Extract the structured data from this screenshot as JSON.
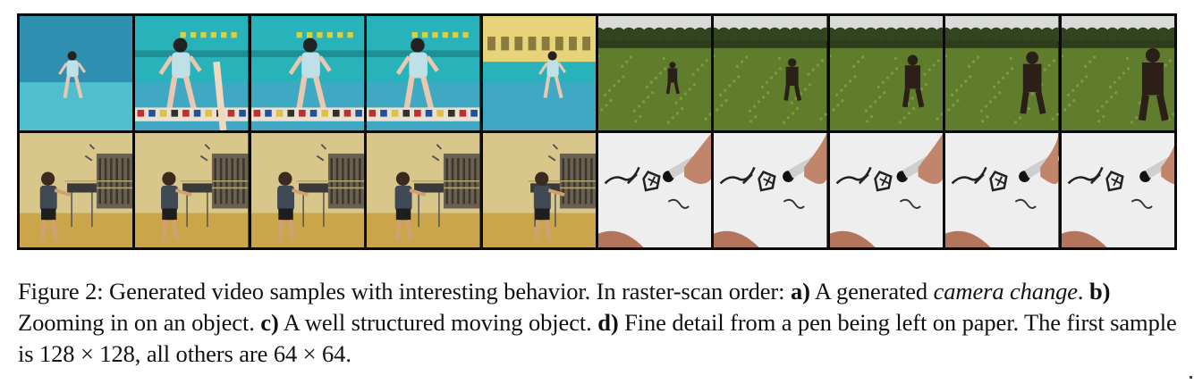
{
  "figure": {
    "samples": [
      {
        "id": "a",
        "scene": "gym-camera-change",
        "frames": 5
      },
      {
        "id": "b",
        "scene": "field-zoom-in",
        "frames": 5
      },
      {
        "id": "c",
        "scene": "gym-moving-child",
        "frames": 5
      },
      {
        "id": "d",
        "scene": "pen-on-paper",
        "frames": 5
      }
    ],
    "colors": {
      "gym_wall": "#27b3b9",
      "gym_floor": "#3fa9c4",
      "field_grass": "#5f7d2c",
      "sky": "#d8dbd8",
      "cream_wall": "#d9c68a",
      "wood_floor": "#caa54a",
      "paper": "#eeeeee"
    }
  },
  "caption": {
    "prefix": "Figure 2: Generated video samples with interesting behavior. In raster-scan order: ",
    "a_label": "a)",
    "a_text_1": " A generated ",
    "a_text_italic": "camera change",
    "a_text_2": ". ",
    "b_label": "b)",
    "b_text": " Zooming in on an object. ",
    "c_label": "c)",
    "c_text": " A well structured moving object. ",
    "d_label": "d)",
    "d_text": " Fine detail from a pen being left on paper. The first sample is 128 × 128, all others are 64 × 64."
  }
}
